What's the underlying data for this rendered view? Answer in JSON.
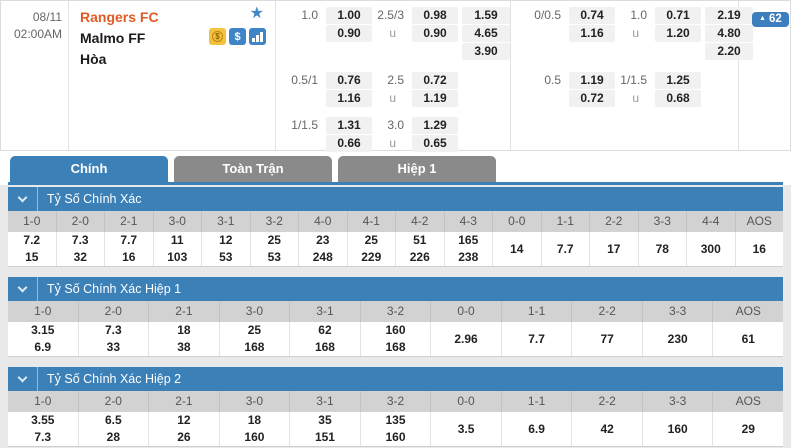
{
  "header": {
    "date": "08/11",
    "time": "02:00AM",
    "home_team": "Rangers FC",
    "away_team": "Malmo FF",
    "draw_label": "Hòa",
    "badge_count": "62",
    "badge_arrow": "▲",
    "star_glyph": "★",
    "coin_icon_glyph": "$",
    "dollar_icon_glyph": "$"
  },
  "odds_groups": [
    {
      "name": "odds-group-1",
      "blocks": [
        {
          "rows": [
            [
              "1.0",
              "1.00",
              "2.5/3",
              "0.98",
              "1.59"
            ],
            [
              "",
              "0.90",
              "u",
              "0.90",
              "4.65"
            ],
            [
              "",
              "",
              "",
              "",
              "3.90"
            ]
          ]
        },
        {
          "rows": [
            [
              "0.5/1",
              "0.76",
              "2.5",
              "0.72",
              ""
            ],
            [
              "",
              "1.16",
              "u",
              "1.19",
              ""
            ]
          ]
        },
        {
          "rows": [
            [
              "1/1.5",
              "1.31",
              "3.0",
              "1.29",
              ""
            ],
            [
              "",
              "0.66",
              "u",
              "0.65",
              ""
            ]
          ]
        }
      ]
    },
    {
      "name": "odds-group-2",
      "blocks": [
        {
          "rows": [
            [
              "0/0.5",
              "0.74",
              "1.0",
              "0.71",
              "2.19"
            ],
            [
              "",
              "1.16",
              "u",
              "1.20",
              "4.80"
            ],
            [
              "",
              "",
              "",
              "",
              "2.20"
            ]
          ]
        },
        {
          "rows": [
            [
              "0.5",
              "1.19",
              "1/1.5",
              "1.25",
              ""
            ],
            [
              "",
              "0.72",
              "u",
              "0.68",
              ""
            ]
          ]
        }
      ]
    }
  ],
  "tabs": [
    {
      "name": "tab-chinh",
      "label": "Chính",
      "active": true
    },
    {
      "name": "tab-toan-tran",
      "label": "Toàn Trận",
      "active": false
    },
    {
      "name": "tab-hiep-1",
      "label": "Hiệp 1",
      "active": false
    }
  ],
  "score_sections": [
    {
      "name": "section-correct-score",
      "title": "Tỷ Số Chính Xác",
      "columns": [
        {
          "label": "1-0",
          "values": [
            "7.2",
            "15"
          ]
        },
        {
          "label": "2-0",
          "values": [
            "7.3",
            "32"
          ]
        },
        {
          "label": "2-1",
          "values": [
            "7.7",
            "16"
          ]
        },
        {
          "label": "3-0",
          "values": [
            "11",
            "103"
          ]
        },
        {
          "label": "3-1",
          "values": [
            "12",
            "53"
          ]
        },
        {
          "label": "3-2",
          "values": [
            "25",
            "53"
          ]
        },
        {
          "label": "4-0",
          "values": [
            "23",
            "248"
          ]
        },
        {
          "label": "4-1",
          "values": [
            "25",
            "229"
          ]
        },
        {
          "label": "4-2",
          "values": [
            "51",
            "226"
          ]
        },
        {
          "label": "4-3",
          "values": [
            "165",
            "238"
          ]
        },
        {
          "label": "0-0",
          "values": [
            "14"
          ]
        },
        {
          "label": "1-1",
          "values": [
            "7.7"
          ]
        },
        {
          "label": "2-2",
          "values": [
            "17"
          ]
        },
        {
          "label": "3-3",
          "values": [
            "78"
          ]
        },
        {
          "label": "4-4",
          "values": [
            "300"
          ]
        },
        {
          "label": "AOS",
          "values": [
            "16"
          ]
        }
      ]
    },
    {
      "name": "section-correct-score-half1",
      "title": "Tỷ Số Chính Xác Hiệp 1",
      "columns": [
        {
          "label": "1-0",
          "values": [
            "3.15",
            "6.9"
          ]
        },
        {
          "label": "2-0",
          "values": [
            "7.3",
            "33"
          ]
        },
        {
          "label": "2-1",
          "values": [
            "18",
            "38"
          ]
        },
        {
          "label": "3-0",
          "values": [
            "25",
            "168"
          ]
        },
        {
          "label": "3-1",
          "values": [
            "62",
            "168"
          ]
        },
        {
          "label": "3-2",
          "values": [
            "160",
            "168"
          ]
        },
        {
          "label": "0-0",
          "values": [
            "2.96"
          ]
        },
        {
          "label": "1-1",
          "values": [
            "7.7"
          ]
        },
        {
          "label": "2-2",
          "values": [
            "77"
          ]
        },
        {
          "label": "3-3",
          "values": [
            "230"
          ]
        },
        {
          "label": "AOS",
          "values": [
            "61"
          ]
        }
      ]
    },
    {
      "name": "section-correct-score-half2",
      "title": "Tỷ Số Chính Xác Hiệp 2",
      "columns": [
        {
          "label": "1-0",
          "values": [
            "3.55",
            "7.3"
          ]
        },
        {
          "label": "2-0",
          "values": [
            "6.5",
            "28"
          ]
        },
        {
          "label": "2-1",
          "values": [
            "12",
            "26"
          ]
        },
        {
          "label": "3-0",
          "values": [
            "18",
            "160"
          ]
        },
        {
          "label": "3-1",
          "values": [
            "35",
            "151"
          ]
        },
        {
          "label": "3-2",
          "values": [
            "135",
            "160"
          ]
        },
        {
          "label": "0-0",
          "values": [
            "3.5"
          ]
        },
        {
          "label": "1-1",
          "values": [
            "6.9"
          ]
        },
        {
          "label": "2-2",
          "values": [
            "42"
          ]
        },
        {
          "label": "3-3",
          "values": [
            "160"
          ]
        },
        {
          "label": "AOS",
          "values": [
            "29"
          ]
        }
      ]
    }
  ],
  "colors": {
    "accent_blue": "#3c80b8",
    "badge_blue": "#3d7ebf",
    "tab_gray": "#8a8a8a",
    "home_team_orange": "#e05a25",
    "odds_cell_bg": "#f1f1f1",
    "table_header_bg": "#d2d2d2"
  }
}
